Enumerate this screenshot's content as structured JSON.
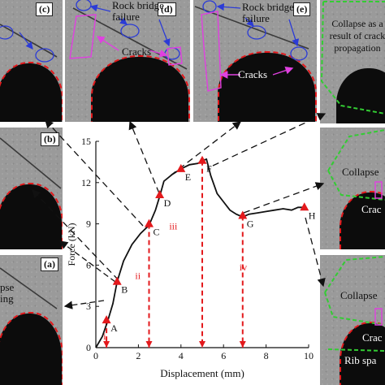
{
  "panels": {
    "a": {
      "label": "(a)",
      "texts": [
        "pse",
        "ing"
      ]
    },
    "b": {
      "label": "(b)"
    },
    "c": {
      "label": "(c)"
    },
    "d": {
      "label": "(d)",
      "rock_bridge": "Rock bridge\nfailure",
      "cracks": "Cracks"
    },
    "e": {
      "label": "(e)",
      "rock_bridge": "Rock bridge\nfailure",
      "cracks": "Cracks"
    },
    "f": {
      "text": "Collapse as a\nresult of crack\npropagation"
    },
    "g": {
      "collapse": "Collapse",
      "cracks": "Crac"
    },
    "h": {
      "collapse": "Collapse",
      "cracks": "Crac",
      "rib": "Rib spa"
    }
  },
  "colors": {
    "tunnel_outline": "#e3191c",
    "crack_magenta": "#e040e0",
    "rock_bridge_blue": "#2b3bd6",
    "collapse_green": "#33cc33",
    "curve": "#111111",
    "markers": "#e3191c"
  },
  "chart_data": {
    "type": "line",
    "xlabel": "Displacement (mm)",
    "ylabel": "Force (kN)",
    "xlim": [
      0,
      10
    ],
    "ylim": [
      0,
      15
    ],
    "x_ticks": [
      "0",
      "2",
      "4",
      "6",
      "8",
      "10"
    ],
    "y_ticks": [
      "0",
      "3",
      "6",
      "9",
      "12",
      "15"
    ],
    "series": [
      {
        "values": [
          [
            0,
            0
          ],
          [
            0.3,
            0.8
          ],
          [
            0.55,
            1.9
          ],
          [
            0.8,
            3.2
          ],
          [
            1.0,
            4.8
          ],
          [
            1.3,
            6.3
          ],
          [
            1.7,
            7.5
          ],
          [
            2.1,
            8.3
          ],
          [
            2.5,
            8.9
          ],
          [
            2.8,
            10.0
          ],
          [
            3.0,
            11.0
          ],
          [
            3.2,
            12.1
          ],
          [
            3.6,
            12.6
          ],
          [
            4.0,
            13.0
          ],
          [
            4.4,
            13.3
          ],
          [
            4.8,
            13.4
          ],
          [
            5.0,
            13.6
          ],
          [
            5.2,
            13.7
          ],
          [
            5.4,
            12.5
          ],
          [
            5.7,
            11.2
          ],
          [
            6.0,
            10.6
          ],
          [
            6.3,
            10.0
          ],
          [
            6.6,
            9.7
          ],
          [
            6.9,
            9.5
          ],
          [
            7.2,
            9.7
          ],
          [
            7.6,
            9.8
          ],
          [
            8.0,
            9.9
          ],
          [
            8.4,
            10.0
          ],
          [
            8.8,
            10.1
          ],
          [
            9.2,
            10.0
          ],
          [
            9.5,
            10.2
          ],
          [
            9.8,
            10.2
          ]
        ]
      }
    ],
    "points": [
      {
        "label": "A",
        "x": 0.5,
        "y": 2.0
      },
      {
        "label": "B",
        "x": 1.0,
        "y": 4.8
      },
      {
        "label": "C",
        "x": 2.5,
        "y": 9.0
      },
      {
        "label": "D",
        "x": 3.0,
        "y": 11.1
      },
      {
        "label": "E",
        "x": 4.0,
        "y": 13.0
      },
      {
        "label": "F",
        "x": 5.0,
        "y": 13.6
      },
      {
        "label": "G",
        "x": 6.9,
        "y": 9.6
      },
      {
        "label": "H",
        "x": 9.8,
        "y": 10.2
      }
    ],
    "stages": [
      {
        "label": "i",
        "x": 0.5,
        "y_label": 0.6
      },
      {
        "label": "ii",
        "x": 2.0,
        "y_label": 5.0
      },
      {
        "label": "iii",
        "x": 3.6,
        "y_label": 8.6
      },
      {
        "label": "iv",
        "x": 6.9,
        "y_label": 5.6
      }
    ],
    "dashed_verticals": [
      0.5,
      2.5,
      5.0,
      6.9
    ],
    "grid": false
  }
}
